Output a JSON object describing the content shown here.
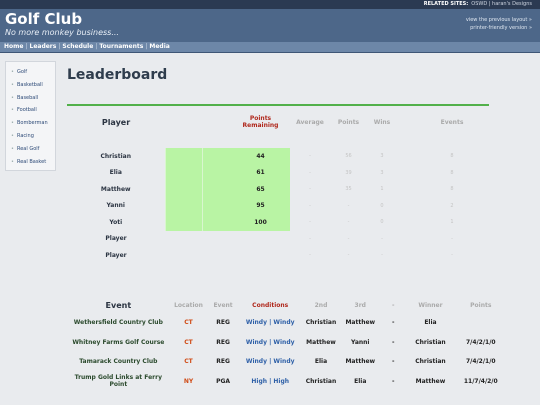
{
  "related": {
    "label": "RELATED SITES:",
    "links": "OSWD | haran's Designs"
  },
  "header": {
    "title": "Golf Club",
    "tagline": "No more monkey business...",
    "link1": "view the previous layout »",
    "link2": "printer-friendly version »"
  },
  "nav": [
    "Home",
    "Leaders",
    "Schedule",
    "Tournaments",
    "Media"
  ],
  "sidebar": [
    "Golf",
    "Basketball",
    "Baseball",
    "Football",
    "Bomberman",
    "Racing",
    "Real Golf",
    "Real Basket"
  ],
  "page": {
    "heading": "Leaderboard"
  },
  "leaderboard": {
    "headers": {
      "player": "Player",
      "points_remaining": "Points Remaining",
      "average": "Average",
      "points": "Points",
      "wins": "Wins",
      "events": "Events"
    },
    "rows": [
      {
        "name": "Christian",
        "remaining": "44",
        "average": "-",
        "points": "56",
        "wins": "3",
        "events": "8"
      },
      {
        "name": "Elia",
        "remaining": "61",
        "average": "-",
        "points": "39",
        "wins": "3",
        "events": "8"
      },
      {
        "name": "Matthew",
        "remaining": "65",
        "average": "-",
        "points": "35",
        "wins": "1",
        "events": "8"
      },
      {
        "name": "Yanni",
        "remaining": "95",
        "average": "-",
        "points": "-",
        "wins": "0",
        "events": "2"
      },
      {
        "name": "Yoti",
        "remaining": "100",
        "average": "-",
        "points": "-",
        "wins": "0",
        "events": "1"
      },
      {
        "name": "Player",
        "remaining": "",
        "average": "-",
        "points": "-",
        "wins": "-",
        "events": "-"
      },
      {
        "name": "Player",
        "remaining": "",
        "average": "-",
        "points": "-",
        "wins": "-",
        "events": "-"
      }
    ]
  },
  "events": {
    "headers": {
      "event": "Event",
      "location": "Location",
      "type": "Event",
      "conditions": "Conditions",
      "second": "2nd",
      "third": "3rd",
      "dash": "-",
      "winner": "Winner",
      "points": "Points"
    },
    "rows": [
      {
        "name": "Wethersfield Country Club",
        "loc": "CT",
        "type": "REG",
        "cond": "Windy | Windy",
        "second": "Christian",
        "third": "Matthew",
        "dash": "-",
        "winner": "Elia",
        "points": ""
      },
      {
        "name": "Whitney Farms Golf Course",
        "loc": "CT",
        "type": "REG",
        "cond": "Windy | Windy",
        "second": "Matthew",
        "third": "Yanni",
        "dash": "-",
        "winner": "Christian",
        "points": "7/4/2/1/0"
      },
      {
        "name": "Tamarack Country Club",
        "loc": "CT",
        "type": "REG",
        "cond": "Windy | Windy",
        "second": "Elia",
        "third": "Matthew",
        "dash": "-",
        "winner": "Christian",
        "points": "7/4/2/1/0"
      },
      {
        "name": "Trump Gold Links at Ferry Point",
        "loc": "NY",
        "type": "PGA",
        "cond": "High | High",
        "second": "Christian",
        "third": "Elia",
        "dash": "-",
        "winner": "Matthew",
        "points": "11/7/4/2/0"
      }
    ]
  }
}
